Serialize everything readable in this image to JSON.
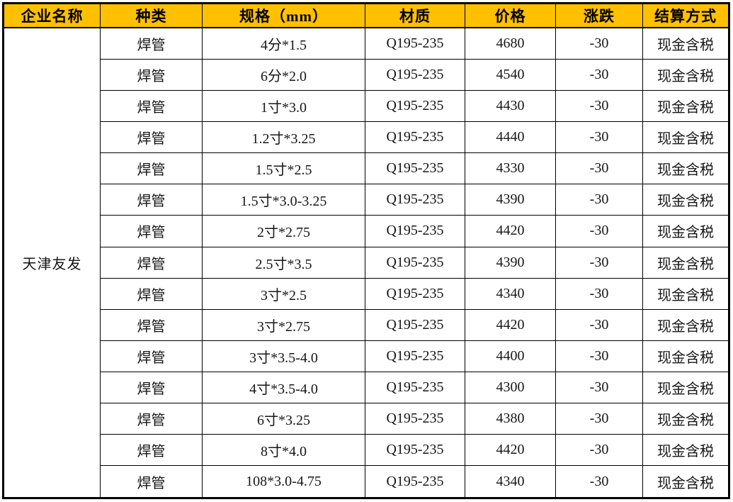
{
  "colors": {
    "header_bg": "#FFC000",
    "header_text": "#000000",
    "body_text": "#161616",
    "border": "#000000",
    "row_bg": "#FFFFFF"
  },
  "table": {
    "columns": [
      "企业名称",
      "种类",
      "规格（mm）",
      "材质",
      "价格",
      "涨跌",
      "结算方式"
    ],
    "company": "天津友发",
    "rows": [
      {
        "type": "焊管",
        "spec": "4分*1.5",
        "material": "Q195-235",
        "price": "4680",
        "change": "-30",
        "settlement": "现金含税"
      },
      {
        "type": "焊管",
        "spec": "6分*2.0",
        "material": "Q195-235",
        "price": "4540",
        "change": "-30",
        "settlement": "现金含税"
      },
      {
        "type": "焊管",
        "spec": "1寸*3.0",
        "material": "Q195-235",
        "price": "4430",
        "change": "-30",
        "settlement": "现金含税"
      },
      {
        "type": "焊管",
        "spec": "1.2寸*3.25",
        "material": "Q195-235",
        "price": "4440",
        "change": "-30",
        "settlement": "现金含税"
      },
      {
        "type": "焊管",
        "spec": "1.5寸*2.5",
        "material": "Q195-235",
        "price": "4330",
        "change": "-30",
        "settlement": "现金含税"
      },
      {
        "type": "焊管",
        "spec": "1.5寸*3.0-3.25",
        "material": "Q195-235",
        "price": "4390",
        "change": "-30",
        "settlement": "现金含税"
      },
      {
        "type": "焊管",
        "spec": "2寸*2.75",
        "material": "Q195-235",
        "price": "4420",
        "change": "-30",
        "settlement": "现金含税"
      },
      {
        "type": "焊管",
        "spec": "2.5寸*3.5",
        "material": "Q195-235",
        "price": "4390",
        "change": "-30",
        "settlement": "现金含税"
      },
      {
        "type": "焊管",
        "spec": "3寸*2.5",
        "material": "Q195-235",
        "price": "4340",
        "change": "-30",
        "settlement": "现金含税"
      },
      {
        "type": "焊管",
        "spec": "3寸*2.75",
        "material": "Q195-235",
        "price": "4420",
        "change": "-30",
        "settlement": "现金含税"
      },
      {
        "type": "焊管",
        "spec": "3寸*3.5-4.0",
        "material": "Q195-235",
        "price": "4400",
        "change": "-30",
        "settlement": "现金含税"
      },
      {
        "type": "焊管",
        "spec": "4寸*3.5-4.0",
        "material": "Q195-235",
        "price": "4300",
        "change": "-30",
        "settlement": "现金含税"
      },
      {
        "type": "焊管",
        "spec": "6寸*3.25",
        "material": "Q195-235",
        "price": "4380",
        "change": "-30",
        "settlement": "现金含税"
      },
      {
        "type": "焊管",
        "spec": "8寸*4.0",
        "material": "Q195-235",
        "price": "4420",
        "change": "-30",
        "settlement": "现金含税"
      },
      {
        "type": "焊管",
        "spec": "108*3.0-4.75",
        "material": "Q195-235",
        "price": "4340",
        "change": "-30",
        "settlement": "现金含税"
      }
    ]
  }
}
